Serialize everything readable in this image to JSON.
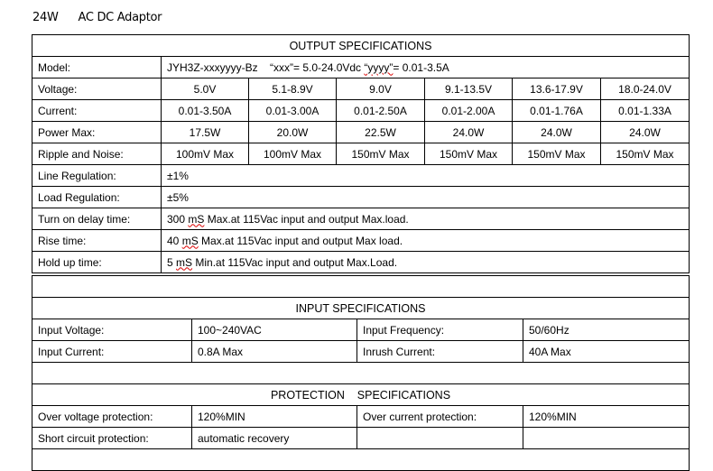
{
  "title": {
    "watt": "24W",
    "name": "AC DC Adaptor"
  },
  "output": {
    "header": "OUTPUT SPECIFICATIONS",
    "model_label": "Model:",
    "model_value": "JYH3Z-xxxyyyy-Bz",
    "model_note_a": "“xxx”= 5.0-24.0Vdc",
    "model_note_b_q": "“yyyy”",
    "model_note_b": "= 0.01-3.5A",
    "rows": [
      {
        "label": "Voltage:",
        "values": [
          "5.0V",
          "5.1-8.9V",
          "9.0V",
          "9.1-13.5V",
          "13.6-17.9V",
          "18.0-24.0V"
        ]
      },
      {
        "label": "Current:",
        "values": [
          "0.01-3.50A",
          "0.01-3.00A",
          "0.01-2.50A",
          "0.01-2.00A",
          "0.01-1.76A",
          "0.01-1.33A"
        ]
      },
      {
        "label": "Power Max:",
        "values": [
          "17.5W",
          "20.0W",
          "22.5W",
          "24.0W",
          "24.0W",
          "24.0W"
        ]
      },
      {
        "label": "Ripple and Noise:",
        "values": [
          "100mV Max",
          "100mV Max",
          "150mV Max",
          "150mV Max",
          "150mV Max",
          "150mV Max"
        ]
      }
    ],
    "line_regulation": {
      "label": "Line Regulation:",
      "value": "±1%"
    },
    "load_regulation": {
      "label": "Load Regulation:",
      "value": "±5%"
    },
    "turn_on": {
      "label": "Turn on delay time:",
      "num": "300",
      "unit": "mS",
      "rest": "Max.at 115Vac input and output Max.load."
    },
    "rise": {
      "label": "Rise time:",
      "num": "40",
      "unit": "mS",
      "rest": "Max.at 115Vac input and output Max load."
    },
    "hold": {
      "label": "Hold up time:",
      "num": "5",
      "unit": "mS",
      "rest": "Min.at 115Vac input and output Max.Load."
    }
  },
  "input": {
    "header": "INPUT SPECIFICATIONS",
    "rows": [
      [
        "Input Voltage:",
        "100~240VAC",
        "Input Frequency:",
        "50/60Hz"
      ],
      [
        "Input Current:",
        "0.8A Max",
        "Inrush Current:",
        "40A Max"
      ]
    ]
  },
  "protection": {
    "header": "PROTECTION    SPECIFICATIONS",
    "rows": [
      [
        "Over voltage protection:",
        "120%MIN",
        "Over current protection:",
        "120%MIN"
      ],
      [
        "Short circuit protection:",
        "automatic recovery",
        "",
        ""
      ]
    ]
  }
}
